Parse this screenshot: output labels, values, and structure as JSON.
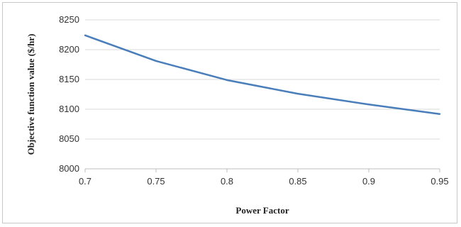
{
  "chart_data": {
    "type": "line",
    "title": "",
    "xlabel": "Power Factor",
    "ylabel": "Objective function value ($/hr)",
    "x": [
      0.7,
      0.75,
      0.8,
      0.85,
      0.9,
      0.95
    ],
    "xticks": [
      "0.7",
      "0.75",
      "0.8",
      "0.85",
      "0.9",
      "0.95"
    ],
    "yticks": [
      "8000",
      "8050",
      "8100",
      "8150",
      "8200",
      "8250"
    ],
    "xlim": [
      0.7,
      0.95
    ],
    "ylim": [
      8000,
      8250
    ],
    "grid": "horizontal",
    "series": [
      {
        "color": "#4a7ebb",
        "values": [
          8224,
          8181,
          8149,
          8126,
          8108,
          8092
        ]
      }
    ]
  }
}
